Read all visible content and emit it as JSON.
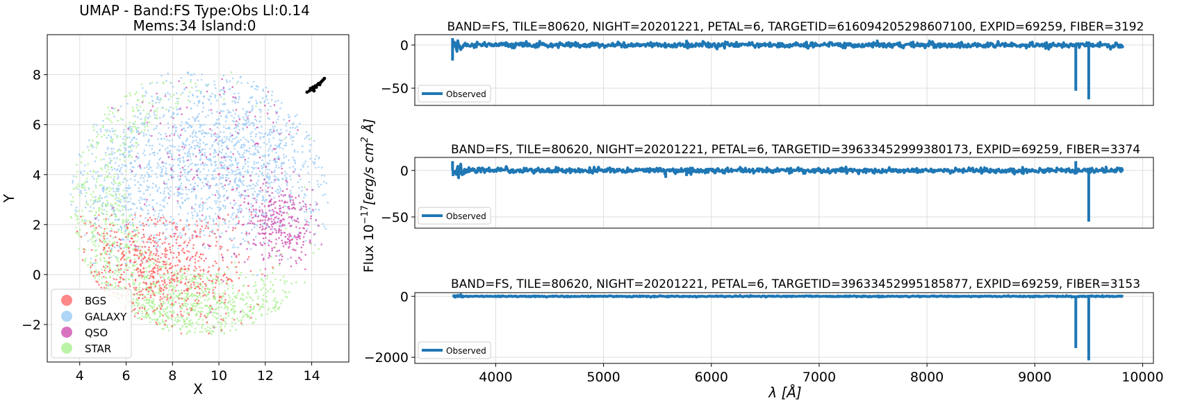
{
  "chart_data": [
    {
      "type": "scatter",
      "title": "UMAP  -  Band:FS Type:Obs Ll:0.14",
      "subtitle": "Mems:34 Island:0",
      "xlabel": "X",
      "ylabel": "Y",
      "xlim": [
        2.6,
        15.6
      ],
      "ylim": [
        -3.5,
        9.6
      ],
      "xticks": [
        "4",
        "6",
        "8",
        "10",
        "12",
        "14"
      ],
      "yticks": [
        "−2",
        "0",
        "2",
        "4",
        "6",
        "8"
      ],
      "grid": true,
      "legend_position": "lower-left",
      "series": [
        {
          "name": "BGS",
          "color": "#ff6060"
        },
        {
          "name": "GALAXY",
          "color": "#9cccf5"
        },
        {
          "name": "QSO",
          "color": "#d050b0"
        },
        {
          "name": "STAR",
          "color": "#aaf090"
        }
      ],
      "highlight_color": "#000000",
      "highlight_points": [
        [
          13.8,
          7.3
        ],
        [
          13.9,
          7.35
        ],
        [
          14.0,
          7.4
        ],
        [
          14.05,
          7.5
        ],
        [
          14.1,
          7.45
        ],
        [
          14.15,
          7.55
        ],
        [
          14.2,
          7.5
        ],
        [
          14.25,
          7.6
        ],
        [
          14.3,
          7.65
        ],
        [
          14.35,
          7.6
        ],
        [
          14.4,
          7.7
        ],
        [
          14.45,
          7.75
        ],
        [
          14.5,
          7.8
        ],
        [
          14.55,
          7.85
        ],
        [
          13.95,
          7.45
        ],
        [
          14.1,
          7.35
        ]
      ]
    },
    {
      "type": "line",
      "title": "BAND=FS, TILE=80620, NIGHT=20201221, PETAL=6, TARGETID=616094205298607100, EXPID=69259, FIBER=3192",
      "xlim": [
        3250,
        10100
      ],
      "ylim": [
        -70,
        12
      ],
      "yticks": [
        "0",
        "−50"
      ],
      "legend": "Observed",
      "color": "#1f77b4",
      "baseline": 0,
      "noise_start": 3600,
      "noise_end": 9820,
      "spikes": [
        [
          3600,
          -18
        ],
        [
          3600,
          8
        ],
        [
          5577,
          -4
        ],
        [
          5770,
          6
        ],
        [
          5780,
          -5
        ],
        [
          9380,
          -53
        ],
        [
          9500,
          -63
        ],
        [
          9800,
          -4
        ]
      ]
    },
    {
      "type": "line",
      "title": "BAND=FS, TILE=80620, NIGHT=20201221, PETAL=6, TARGETID=39633452999380173, EXPID=69259, FIBER=3374",
      "xlim": [
        3250,
        10100
      ],
      "ylim": [
        -62,
        14
      ],
      "yticks": [
        "0",
        "−50"
      ],
      "legend": "Observed",
      "color": "#1f77b4",
      "baseline": 0,
      "noise_start": 3600,
      "noise_end": 9820,
      "spikes": [
        [
          3600,
          10
        ],
        [
          3605,
          -6
        ],
        [
          5577,
          -8
        ],
        [
          5770,
          -6
        ],
        [
          9380,
          10
        ],
        [
          9500,
          -55
        ]
      ]
    },
    {
      "type": "line",
      "title": "BAND=FS, TILE=80620, NIGHT=20201221, PETAL=6, TARGETID=39633452995185877, EXPID=69259, FIBER=3153",
      "xlabel": "λ [Å]",
      "xlim": [
        3250,
        10100
      ],
      "ylim": [
        -2200,
        120
      ],
      "xticks": [
        "4000",
        "5000",
        "6000",
        "7000",
        "8000",
        "9000",
        "10000"
      ],
      "yticks": [
        "0",
        "−2000"
      ],
      "legend": "Observed",
      "color": "#1f77b4",
      "baseline": 0,
      "noise_start": 3600,
      "noise_end": 9820,
      "spikes": [
        [
          9380,
          -1700
        ],
        [
          9500,
          -2100
        ]
      ]
    }
  ],
  "shared_ylabel": "Flux 10",
  "shared_ylabel_exp": "−17",
  "shared_ylabel_unit": "[erg/s cm",
  "shared_ylabel_unit_exp": "2",
  "shared_ylabel_tail": " Å]"
}
